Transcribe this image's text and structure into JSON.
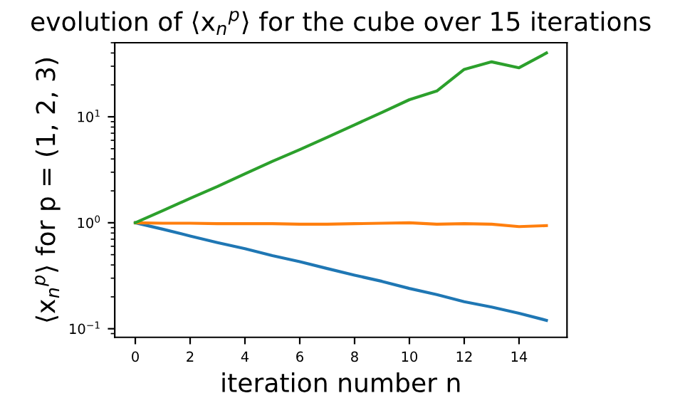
{
  "chart_data": {
    "type": "line",
    "title": "evolution of ⟨x$_{n}$$^{p}$⟩ for the cube over 15 iterations",
    "xlabel": "iteration number n",
    "ylabel": "⟨x$_{n}$$^{p}$⟩ for p = (1, 2, 3)",
    "x": [
      0,
      1,
      2,
      3,
      4,
      5,
      6,
      7,
      8,
      9,
      10,
      11,
      12,
      13,
      14,
      15
    ],
    "series": [
      {
        "color": "#1f77b4",
        "values": [
          1,
          0.87,
          0.75,
          0.65,
          0.57,
          0.49,
          0.43,
          0.37,
          0.32,
          0.28,
          0.24,
          0.21,
          0.18,
          0.16,
          0.14,
          0.12
        ]
      },
      {
        "color": "#ff7f0e",
        "values": [
          1,
          0.99,
          0.99,
          0.98,
          0.98,
          0.98,
          0.97,
          0.97,
          0.98,
          0.99,
          1.0,
          0.97,
          0.98,
          0.97,
          0.92,
          0.94
        ]
      },
      {
        "color": "#2ca02c",
        "values": [
          1,
          1.3,
          1.7,
          2.2,
          2.9,
          3.8,
          4.9,
          6.4,
          8.4,
          11,
          14.5,
          17.5,
          28,
          33,
          29,
          40
        ]
      }
    ],
    "log": "y",
    "xlim": [
      -0.75,
      15.75
    ],
    "ylim": [
      0.083,
      50
    ],
    "xticks": [
      0,
      2,
      4,
      6,
      8,
      10,
      12,
      14
    ],
    "yticks": [
      {
        "value": 0.1,
        "label": "10$^{−1}$"
      },
      {
        "value": 1,
        "label": "10$^{0}$"
      },
      {
        "value": 10,
        "label": "10$^{1}$"
      }
    ],
    "grid": false,
    "legend": false
  }
}
